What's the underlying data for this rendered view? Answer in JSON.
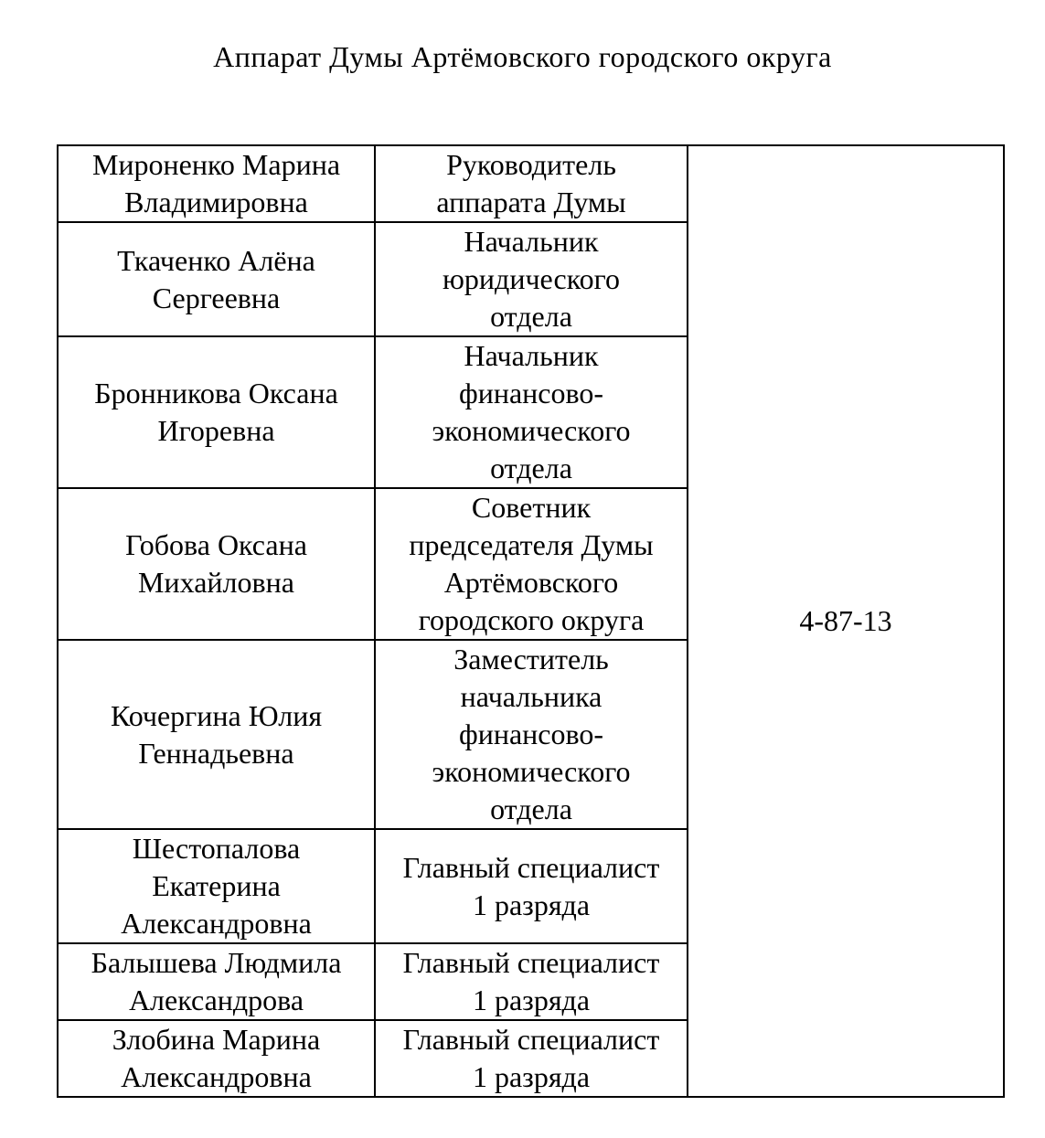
{
  "document": {
    "title": "Аппарат Думы Артёмовского городского округа"
  },
  "table": {
    "phone": "4-87-13",
    "rows": [
      {
        "name": [
          "Мироненко Марина",
          "Владимировна"
        ],
        "position": [
          "Руководитель",
          "аппарата Думы"
        ]
      },
      {
        "name": [
          "Ткаченко Алёна",
          "Сергеевна"
        ],
        "position": [
          "Начальник",
          "юридического",
          "отдела"
        ]
      },
      {
        "name": [
          "Бронникова Оксана",
          "Игоревна"
        ],
        "position": [
          "Начальник",
          "финансово-",
          "экономического",
          "отдела"
        ]
      },
      {
        "name": [
          "Гобова Оксана",
          "Михайловна"
        ],
        "position": [
          "Советник",
          "председателя Думы",
          "Артёмовского",
          "городского округа"
        ]
      },
      {
        "name": [
          "Кочергина Юлия",
          "Геннадьевна"
        ],
        "position": [
          "Заместитель",
          "начальника",
          "финансово-",
          "экономического",
          "отдела"
        ]
      },
      {
        "name": [
          "Шестопалова",
          "Екатерина",
          "Александровна"
        ],
        "position": [
          "Главный специалист",
          "1 разряда"
        ]
      },
      {
        "name": [
          "Балышева Людмила",
          "Александрова"
        ],
        "position": [
          "Главный специалист",
          "1 разряда"
        ]
      },
      {
        "name": [
          "Злобина Марина",
          "Александровна"
        ],
        "position": [
          "Главный специалист",
          "1 разряда"
        ]
      }
    ]
  }
}
